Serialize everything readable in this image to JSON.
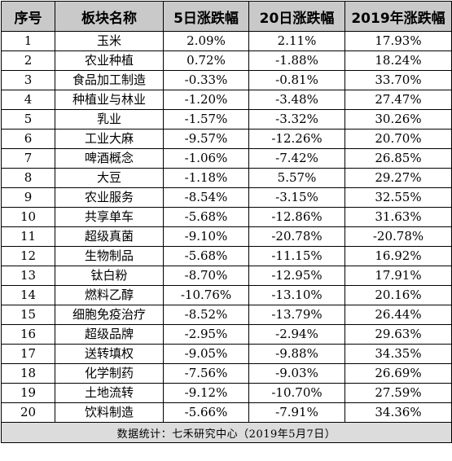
{
  "headers": [
    "序号",
    "板块名称",
    "5日涨跌幅",
    "20日涨跌幅",
    "2019年涨跌幅"
  ],
  "rows": [
    [
      "1",
      "玉米",
      "2.09%",
      "2.11%",
      "17.93%"
    ],
    [
      "2",
      "农业种植",
      "0.72%",
      "-1.88%",
      "18.24%"
    ],
    [
      "3",
      "食品加工制造",
      "-0.33%",
      "-0.81%",
      "33.70%"
    ],
    [
      "4",
      "种植业与林业",
      "-1.20%",
      "-3.48%",
      "27.47%"
    ],
    [
      "5",
      "乳业",
      "-1.57%",
      "-3.32%",
      "30.26%"
    ],
    [
      "6",
      "工业大麻",
      "-9.57%",
      "-12.26%",
      "20.70%"
    ],
    [
      "7",
      "啤酒概念",
      "-1.06%",
      "-7.42%",
      "26.85%"
    ],
    [
      "8",
      "大豆",
      "-1.18%",
      "5.57%",
      "29.27%"
    ],
    [
      "9",
      "农业服务",
      "-8.54%",
      "-3.15%",
      "32.55%"
    ],
    [
      "10",
      "共享单车",
      "-5.68%",
      "-12.86%",
      "31.63%"
    ],
    [
      "11",
      "超级真菌",
      "-9.10%",
      "-20.78%",
      "-20.78%"
    ],
    [
      "12",
      "生物制品",
      "-5.68%",
      "-11.15%",
      "16.92%"
    ],
    [
      "13",
      "钛白粉",
      "-8.70%",
      "-12.95%",
      "17.91%"
    ],
    [
      "14",
      "燃料乙醇",
      "-10.76%",
      "-13.10%",
      "20.16%"
    ],
    [
      "15",
      "细胞免疫治疗",
      "-8.52%",
      "-13.79%",
      "26.44%"
    ],
    [
      "16",
      "超级品牌",
      "-2.95%",
      "-2.94%",
      "29.63%"
    ],
    [
      "17",
      "送转填权",
      "-9.05%",
      "-9.88%",
      "34.35%"
    ],
    [
      "18",
      "化学制药",
      "-7.56%",
      "-9.03%",
      "26.69%"
    ],
    [
      "19",
      "土地流转",
      "-9.12%",
      "-10.70%",
      "27.59%"
    ],
    [
      "20",
      "饮料制造",
      "-5.66%",
      "-7.91%",
      "34.36%"
    ]
  ],
  "footer": "数据统计：七禾研究中心（2019年5月7日）"
}
